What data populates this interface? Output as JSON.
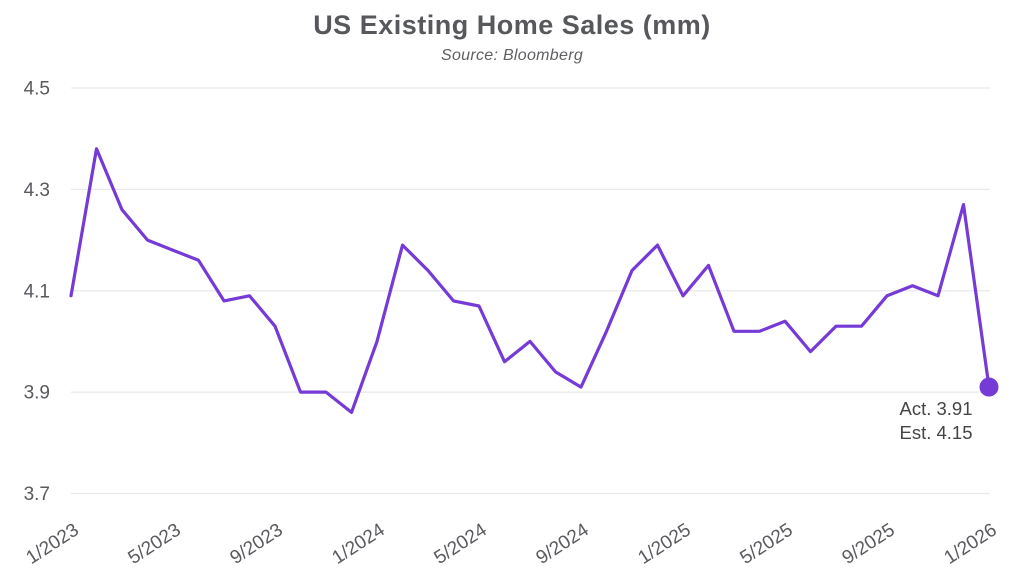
{
  "chart_data": {
    "type": "line",
    "title": "US Existing Home Sales (mm)",
    "subtitle": "Source: Bloomberg",
    "x": [
      "1/2023",
      "2/2023",
      "3/2023",
      "4/2023",
      "5/2023",
      "6/2023",
      "7/2023",
      "8/2023",
      "9/2023",
      "10/2023",
      "11/2023",
      "12/2023",
      "1/2024",
      "2/2024",
      "3/2024",
      "4/2024",
      "5/2024",
      "6/2024",
      "7/2024",
      "8/2024",
      "9/2024",
      "10/2024",
      "11/2024",
      "12/2024",
      "1/2025",
      "2/2025",
      "3/2025",
      "4/2025",
      "5/2025",
      "6/2025",
      "7/2025",
      "8/2025",
      "9/2025",
      "10/2025",
      "11/2025",
      "12/2025",
      "1/2026"
    ],
    "series": [
      {
        "name": "US Existing Home Sales (mm)",
        "values": [
          4.09,
          4.38,
          4.26,
          4.2,
          4.18,
          4.16,
          4.08,
          4.09,
          4.03,
          3.9,
          3.9,
          3.86,
          4.0,
          4.19,
          4.14,
          4.08,
          4.07,
          3.96,
          4.0,
          3.94,
          3.91,
          4.02,
          4.14,
          4.19,
          4.09,
          4.15,
          4.02,
          4.02,
          4.04,
          3.98,
          4.03,
          4.03,
          4.09,
          4.11,
          4.09,
          4.27,
          3.91
        ]
      }
    ],
    "x_axis": {
      "tick_labels": [
        "1/2023",
        "5/2023",
        "9/2023",
        "1/2024",
        "5/2024",
        "9/2024",
        "1/2025",
        "5/2025",
        "9/2025",
        "1/2026"
      ],
      "label_rotation_deg": -33
    },
    "y_axis": {
      "tick_labels": [
        "4.5",
        "4.3",
        "4.1",
        "3.9",
        "3.7"
      ],
      "ticks": [
        4.5,
        4.3,
        4.1,
        3.9,
        3.7
      ],
      "range": [
        3.7,
        4.5
      ]
    },
    "grid": "horizontal",
    "legend_position": "none",
    "last_point_marker": true,
    "annotation": {
      "actual": "Act. 3.91",
      "estimate": "Est. 4.15"
    },
    "colors": {
      "line": "#763ad6",
      "marker": "#763ad6",
      "grid": "#e9e9e9",
      "title": "#57585c",
      "subtitle": "#5f6064",
      "axis_labels": "#595a5e",
      "annotation": "#454545"
    }
  }
}
